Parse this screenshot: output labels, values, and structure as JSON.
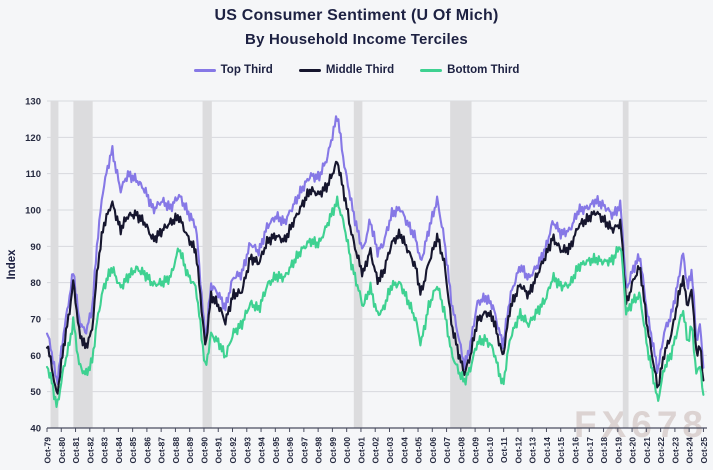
{
  "title": {
    "line1": "US Consumer Sentiment (U Of Mich)",
    "line2": "By Household Income Terciles"
  },
  "legend": [
    {
      "label": "Top Third",
      "color": "#8678e6"
    },
    {
      "label": "Middle Third",
      "color": "#16162e"
    },
    {
      "label": "Bottom Third",
      "color": "#3ed191"
    }
  ],
  "watermark": "FX678",
  "chart_data": {
    "type": "line",
    "title": "US Consumer Sentiment (U Of Mich) By Household Income Terciles",
    "xlabel": "",
    "ylabel": "Index",
    "ylim": [
      40,
      130
    ],
    "ytick_step": 10,
    "xlim_years": [
      1979.75,
      2026.0
    ],
    "grid": "horizontal",
    "legend_position": "top",
    "band_color": "#dcdcde",
    "gridline_color": "#d7d9de",
    "axis_color": "#4a4d60",
    "tick_text_color": "#262a40",
    "x_tick_labels": [
      "Oct-79",
      "Oct-80",
      "Oct-81",
      "Oct-82",
      "Oct-83",
      "Oct-84",
      "Oct-85",
      "Oct-86",
      "Oct-87",
      "Oct-88",
      "Oct-89",
      "Oct-90",
      "Oct-91",
      "Oct-92",
      "Oct-93",
      "Oct-94",
      "Oct-95",
      "Oct-96",
      "Oct-97",
      "Oct-98",
      "Oct-99",
      "Oct-00",
      "Oct-01",
      "Oct-02",
      "Oct-03",
      "Oct-04",
      "Oct-05",
      "Oct-06",
      "Oct-07",
      "Oct-08",
      "Oct-09",
      "Oct-10",
      "Oct-11",
      "Oct-12",
      "Oct-13",
      "Oct-14",
      "Oct-15",
      "Oct-16",
      "Oct-17",
      "Oct-18",
      "Oct-19",
      "Oct-20",
      "Oct-21",
      "Oct-22",
      "Oct-23",
      "Oct-24",
      "Oct-25"
    ],
    "recession_bands_years": [
      [
        1980.0,
        1980.55
      ],
      [
        1981.6,
        1982.95
      ],
      [
        1990.65,
        1991.3
      ],
      [
        2001.25,
        2001.85
      ],
      [
        2008.0,
        2009.5
      ],
      [
        2020.1,
        2020.5
      ]
    ],
    "anchors_x": [
      1979.75,
      1980.1,
      1980.45,
      1980.9,
      1981.3,
      1981.6,
      1982.0,
      1982.45,
      1982.9,
      1983.3,
      1983.7,
      1984.3,
      1984.9,
      1985.4,
      1986.0,
      1986.6,
      1987.2,
      1987.8,
      1988.4,
      1989.0,
      1989.6,
      1990.2,
      1990.85,
      1991.25,
      1991.8,
      1992.25,
      1992.8,
      1993.4,
      1994.0,
      1994.6,
      1995.2,
      1995.8,
      1996.4,
      1997.0,
      1997.6,
      1998.2,
      1998.8,
      1999.4,
      2000.1,
      2000.6,
      2001.1,
      2001.55,
      2001.9,
      2002.4,
      2002.9,
      2003.3,
      2003.9,
      2004.5,
      2005.1,
      2005.6,
      2005.95,
      2006.5,
      2007.1,
      2007.6,
      2008.1,
      2008.6,
      2009.0,
      2009.4,
      2009.9,
      2010.5,
      2011.0,
      2011.7,
      2012.2,
      2012.9,
      2013.5,
      2014.1,
      2014.7,
      2015.2,
      2015.8,
      2016.4,
      2017.0,
      2017.6,
      2018.2,
      2018.8,
      2019.4,
      2019.95,
      2020.35,
      2020.8,
      2021.3,
      2021.8,
      2022.2,
      2022.55,
      2023.0,
      2023.5,
      2024.0,
      2024.3,
      2024.65,
      2024.95,
      2025.25,
      2025.5,
      2025.8
    ],
    "series": [
      {
        "name": "Top Third",
        "color": "#8678e6",
        "values": [
          66,
          60,
          52,
          66,
          76,
          84,
          70,
          66,
          72,
          92,
          106,
          117,
          106,
          110,
          108,
          105,
          100,
          103,
          101,
          104,
          99,
          95,
          64,
          80,
          77,
          73,
          81,
          82,
          91,
          89,
          96,
          98,
          96,
          101,
          106,
          110,
          109,
          114,
          126,
          112,
          102,
          94,
          89,
          97,
          88,
          90,
          99,
          101,
          96,
          92,
          85,
          94,
          103,
          92,
          75,
          65,
          57,
          62,
          74,
          76,
          74,
          63,
          76,
          84,
          81,
          85,
          90,
          97,
          93,
          94,
          100,
          101,
          103,
          101,
          98,
          101,
          78,
          84,
          88,
          72,
          63,
          55,
          66,
          71,
          81,
          89,
          79,
          84,
          64,
          68,
          55
        ]
      },
      {
        "name": "Middle Third",
        "color": "#16162e",
        "values": [
          64,
          57,
          49,
          62,
          71,
          80,
          66,
          62,
          67,
          85,
          96,
          102,
          94,
          98,
          99,
          97,
          92,
          94,
          96,
          98,
          93,
          89,
          62,
          76,
          73,
          69,
          77,
          78,
          87,
          85,
          91,
          93,
          92,
          97,
          101,
          105,
          104,
          107,
          114,
          104,
          93,
          86,
          82,
          89,
          81,
          83,
          91,
          93,
          88,
          84,
          77,
          86,
          93,
          85,
          68,
          60,
          55,
          60,
          70,
          72,
          70,
          59,
          73,
          80,
          77,
          82,
          87,
          92,
          89,
          90,
          96,
          97,
          99,
          97,
          95,
          97,
          74,
          80,
          84,
          68,
          59,
          51,
          61,
          66,
          76,
          81,
          73,
          78,
          60,
          63,
          51
        ]
      },
      {
        "name": "Bottom Third",
        "color": "#3ed191",
        "values": [
          57,
          52,
          45,
          56,
          63,
          70,
          58,
          55,
          58,
          70,
          78,
          84,
          79,
          82,
          84,
          82,
          79,
          80,
          82,
          90,
          82,
          78,
          56,
          66,
          64,
          60,
          66,
          68,
          74,
          73,
          80,
          82,
          81,
          85,
          89,
          92,
          91,
          96,
          102,
          95,
          85,
          79,
          74,
          79,
          71,
          72,
          79,
          80,
          75,
          70,
          63,
          73,
          79,
          72,
          61,
          56,
          53,
          56,
          63,
          64,
          62,
          52,
          65,
          71,
          68,
          72,
          76,
          82,
          79,
          79,
          84,
          86,
          87,
          86,
          86,
          90,
          71,
          75,
          77,
          63,
          55,
          47,
          56,
          60,
          68,
          73,
          64,
          69,
          55,
          58,
          46
        ]
      }
    ],
    "render_hints": {
      "noise_amplitude": 2.0,
      "samples_per_year": 12,
      "line_width": 2.1
    }
  }
}
